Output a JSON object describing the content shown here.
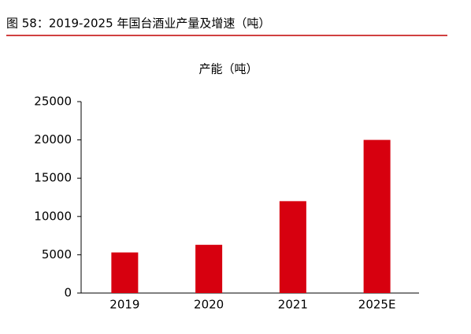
{
  "caption": "图 58：2019-2025 年国台酒业产量及增速（吨）",
  "chart_data": {
    "type": "bar",
    "title": "产能（吨）",
    "categories": [
      "2019",
      "2020",
      "2021",
      "2025E"
    ],
    "values": [
      5300,
      6300,
      12000,
      20000
    ],
    "color": "#d7000f",
    "ylim": [
      0,
      25000
    ],
    "yticks": [
      0,
      5000,
      10000,
      15000,
      20000,
      25000
    ],
    "grid": false
  }
}
